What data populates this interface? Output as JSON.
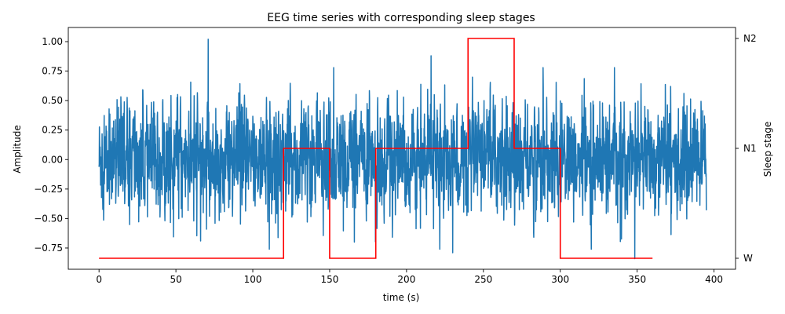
{
  "chart_data": {
    "type": "line",
    "title": "EEG time series with corresponding sleep stages",
    "xlabel": "time (s)",
    "ylabel": "Amplitude",
    "ylabel_right": "Sleep stage",
    "xlim": [
      -20,
      414
    ],
    "ylim": [
      -0.93,
      1.12
    ],
    "xticks": [
      0,
      50,
      100,
      150,
      200,
      250,
      300,
      350,
      400
    ],
    "yticks": [
      -0.75,
      -0.5,
      -0.25,
      0.0,
      0.25,
      0.5,
      0.75,
      1.0
    ],
    "ytick_labels": [
      "−0.75",
      "−0.50",
      "−0.25",
      "0.00",
      "0.25",
      "0.50",
      "0.75",
      "1.00"
    ],
    "right_axis": {
      "labels": [
        "W",
        "N1",
        "N2"
      ],
      "values": [
        0,
        1,
        2
      ],
      "ylim": [
        -0.1,
        2.1
      ]
    },
    "grid": false,
    "series": [
      {
        "color": "#1f77b4",
        "x_range": [
          0,
          395
        ],
        "approx_amplitude_range": [
          -0.84,
          1.02
        ],
        "peaks": [
          {
            "x": 71,
            "y": 1.02
          },
          {
            "x": 348.5,
            "y": -0.84
          },
          {
            "x": 66,
            "y": -0.69
          },
          {
            "x": 230,
            "y": -0.79
          },
          {
            "x": 216,
            "y": 0.88
          }
        ]
      },
      {
        "color": "#ff0000",
        "x": [
          0,
          30,
          60,
          90,
          120,
          150,
          180,
          210,
          240,
          270,
          300,
          330,
          360
        ],
        "stage_values": [
          0,
          0,
          0,
          0,
          1,
          0,
          1,
          1,
          2,
          1,
          0,
          0,
          0
        ]
      }
    ]
  }
}
